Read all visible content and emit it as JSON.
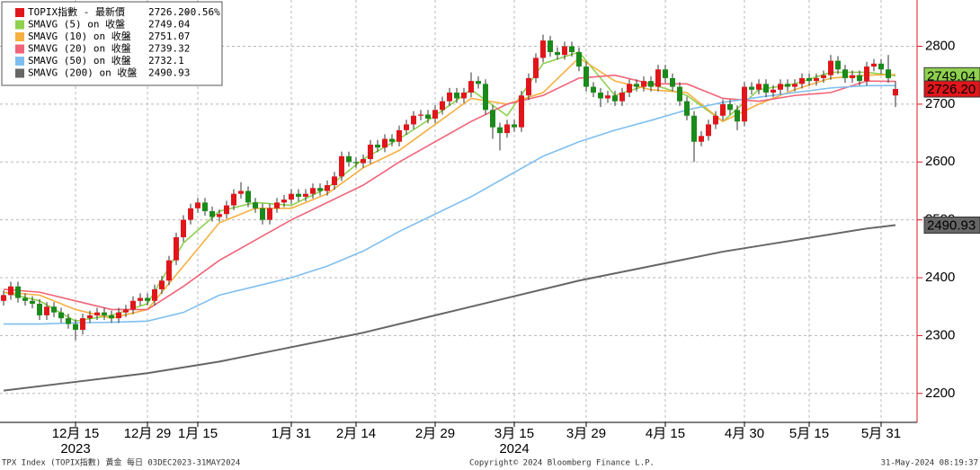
{
  "chart_data": {
    "type": "candlestick",
    "candles": {
      "name": "TOPIX指數 - 最新價",
      "last_label": "2726.20",
      "change": "-0.56%",
      "up_color": "#e0161b",
      "down_color": "#1a8a1a",
      "open": [
        2360,
        2370,
        2385,
        2365,
        2360,
        2355,
        2335,
        2350,
        2340,
        2330,
        2320,
        2310,
        2330,
        2335,
        2340,
        2335,
        2330,
        2340,
        2345,
        2360,
        2365,
        2360,
        2380,
        2395,
        2430,
        2470,
        2500,
        2520,
        2530,
        2515,
        2505,
        2510,
        2525,
        2545,
        2550,
        2530,
        2520,
        2500,
        2520,
        2530,
        2535,
        2545,
        2540,
        2545,
        2555,
        2550,
        2560,
        2575,
        2610,
        2600,
        2598,
        2605,
        2630,
        2625,
        2640,
        2635,
        2655,
        2665,
        2680,
        2682,
        2675,
        2690,
        2705,
        2720,
        2710,
        2720,
        2740,
        2735,
        2690,
        2660,
        2650,
        2665,
        2660,
        2715,
        2745,
        2780,
        2810,
        2790,
        2785,
        2800,
        2790,
        2765,
        2730,
        2720,
        2710,
        2715,
        2705,
        2720,
        2735,
        2730,
        2740,
        2730,
        2760,
        2745,
        2730,
        2705,
        2680,
        2635,
        2645,
        2665,
        2680,
        2700,
        2690,
        2670,
        2730,
        2725,
        2735,
        2720,
        2725,
        2735,
        2730,
        2735,
        2745,
        2740,
        2745,
        2750,
        2775,
        2760,
        2745,
        2750,
        2740,
        2765,
        2770,
        2760,
        2715
      ],
      "high": [
        2378,
        2393,
        2393,
        2373,
        2368,
        2363,
        2358,
        2358,
        2348,
        2338,
        2328,
        2338,
        2343,
        2348,
        2348,
        2343,
        2348,
        2353,
        2368,
        2373,
        2373,
        2388,
        2403,
        2438,
        2478,
        2508,
        2528,
        2538,
        2538,
        2523,
        2518,
        2533,
        2553,
        2565,
        2558,
        2538,
        2528,
        2528,
        2538,
        2543,
        2553,
        2553,
        2553,
        2563,
        2563,
        2568,
        2583,
        2618,
        2618,
        2608,
        2613,
        2638,
        2638,
        2648,
        2648,
        2663,
        2673,
        2688,
        2690,
        2690,
        2698,
        2713,
        2728,
        2728,
        2728,
        2755,
        2748,
        2743,
        2698,
        2668,
        2673,
        2673,
        2723,
        2753,
        2788,
        2820,
        2818,
        2798,
        2808,
        2808,
        2798,
        2773,
        2738,
        2728,
        2723,
        2723,
        2728,
        2743,
        2743,
        2748,
        2748,
        2768,
        2768,
        2753,
        2738,
        2713,
        2688,
        2653,
        2673,
        2688,
        2708,
        2708,
        2698,
        2738,
        2738,
        2743,
        2743,
        2733,
        2743,
        2743,
        2743,
        2753,
        2753,
        2753,
        2758,
        2785,
        2783,
        2768,
        2758,
        2758,
        2773,
        2778,
        2778,
        2785,
        2740
      ],
      "low": [
        2352,
        2362,
        2357,
        2352,
        2347,
        2327,
        2327,
        2332,
        2322,
        2312,
        2292,
        2302,
        2322,
        2327,
        2327,
        2322,
        2322,
        2332,
        2337,
        2352,
        2352,
        2352,
        2372,
        2387,
        2422,
        2462,
        2492,
        2512,
        2507,
        2497,
        2497,
        2502,
        2517,
        2537,
        2522,
        2512,
        2492,
        2492,
        2512,
        2522,
        2527,
        2532,
        2532,
        2537,
        2542,
        2542,
        2552,
        2567,
        2592,
        2590,
        2590,
        2597,
        2617,
        2617,
        2627,
        2627,
        2647,
        2657,
        2672,
        2667,
        2667,
        2682,
        2697,
        2702,
        2702,
        2712,
        2727,
        2682,
        2640,
        2620,
        2642,
        2652,
        2652,
        2707,
        2737,
        2772,
        2782,
        2777,
        2777,
        2782,
        2757,
        2722,
        2712,
        2695,
        2702,
        2697,
        2697,
        2712,
        2722,
        2722,
        2722,
        2722,
        2737,
        2722,
        2697,
        2672,
        2600,
        2627,
        2637,
        2657,
        2672,
        2682,
        2655,
        2662,
        2717,
        2717,
        2712,
        2712,
        2717,
        2722,
        2722,
        2727,
        2732,
        2732,
        2737,
        2742,
        2752,
        2737,
        2737,
        2732,
        2732,
        2757,
        2752,
        2737,
        2695
      ],
      "close": [
        2370,
        2385,
        2365,
        2360,
        2355,
        2335,
        2350,
        2340,
        2330,
        2320,
        2310,
        2330,
        2335,
        2340,
        2335,
        2330,
        2340,
        2345,
        2360,
        2365,
        2360,
        2380,
        2395,
        2430,
        2470,
        2500,
        2520,
        2530,
        2515,
        2505,
        2510,
        2525,
        2545,
        2550,
        2530,
        2520,
        2500,
        2520,
        2530,
        2535,
        2545,
        2540,
        2545,
        2555,
        2550,
        2560,
        2575,
        2610,
        2600,
        2598,
        2605,
        2630,
        2625,
        2640,
        2635,
        2655,
        2665,
        2680,
        2682,
        2675,
        2690,
        2705,
        2720,
        2710,
        2720,
        2740,
        2735,
        2690,
        2660,
        2650,
        2665,
        2660,
        2715,
        2745,
        2780,
        2810,
        2790,
        2785,
        2800,
        2790,
        2765,
        2730,
        2720,
        2710,
        2715,
        2705,
        2720,
        2735,
        2730,
        2740,
        2730,
        2760,
        2745,
        2730,
        2705,
        2680,
        2635,
        2645,
        2665,
        2680,
        2700,
        2690,
        2670,
        2730,
        2725,
        2735,
        2720,
        2725,
        2735,
        2730,
        2735,
        2745,
        2740,
        2745,
        2750,
        2775,
        2760,
        2745,
        2750,
        2740,
        2765,
        2770,
        2760,
        2745,
        2726.2
      ]
    },
    "series": [
      {
        "name": "SMAVG (5)  on 收盤",
        "color": "#8fd14f",
        "x": [
          0,
          5,
          10,
          15,
          20,
          25,
          30,
          35,
          40,
          45,
          50,
          55,
          60,
          65,
          70,
          75,
          80,
          85,
          90,
          95,
          100,
          105,
          110,
          115,
          120,
          124
        ],
        "values": [
          2375,
          2360,
          2325,
          2335,
          2355,
          2460,
          2515,
          2530,
          2525,
          2555,
          2605,
          2640,
          2680,
          2725,
          2680,
          2770,
          2790,
          2715,
          2735,
          2715,
          2670,
          2725,
          2735,
          2755,
          2755,
          2749.04
        ]
      },
      {
        "name": "SMAVG (10)  on 收盤",
        "color": "#f5b041",
        "x": [
          0,
          5,
          10,
          15,
          20,
          25,
          30,
          35,
          40,
          45,
          50,
          55,
          60,
          65,
          70,
          75,
          80,
          85,
          90,
          95,
          100,
          105,
          110,
          115,
          120,
          124
        ],
        "values": [
          2375,
          2370,
          2345,
          2330,
          2345,
          2420,
          2495,
          2520,
          2520,
          2545,
          2590,
          2620,
          2665,
          2710,
          2700,
          2720,
          2780,
          2740,
          2725,
          2720,
          2670,
          2700,
          2725,
          2745,
          2750,
          2751.07
        ]
      },
      {
        "name": "SMAVG (20)  on 收盤",
        "color": "#f06478",
        "x": [
          0,
          5,
          10,
          15,
          20,
          25,
          30,
          35,
          40,
          45,
          50,
          55,
          60,
          65,
          70,
          75,
          80,
          85,
          90,
          95,
          100,
          105,
          110,
          115,
          120,
          124
        ],
        "values": [
          2380,
          2375,
          2360,
          2345,
          2345,
          2385,
          2430,
          2465,
          2500,
          2530,
          2560,
          2600,
          2635,
          2670,
          2700,
          2715,
          2745,
          2750,
          2735,
          2735,
          2710,
          2705,
          2715,
          2720,
          2740,
          2739.32
        ]
      },
      {
        "name": "SMAVG (50)  on 收盤",
        "color": "#7fbfef",
        "x": [
          0,
          5,
          10,
          15,
          20,
          25,
          30,
          35,
          40,
          45,
          50,
          55,
          60,
          65,
          70,
          75,
          80,
          85,
          90,
          95,
          100,
          105,
          110,
          115,
          120,
          124
        ],
        "values": [
          2320,
          2320,
          2322,
          2323,
          2325,
          2340,
          2370,
          2385,
          2400,
          2420,
          2446,
          2480,
          2510,
          2540,
          2575,
          2610,
          2635,
          2655,
          2672,
          2690,
          2703,
          2712,
          2720,
          2728,
          2732,
          2732.1
        ]
      },
      {
        "name": "SMAVG (200)  on 收盤",
        "color": "#666666",
        "x": [
          0,
          10,
          20,
          30,
          40,
          50,
          60,
          70,
          80,
          90,
          100,
          110,
          120,
          124
        ],
        "values": [
          2205,
          2220,
          2235,
          2255,
          2280,
          2305,
          2335,
          2365,
          2395,
          2420,
          2445,
          2465,
          2485,
          2490.93
        ]
      }
    ],
    "xlim": [
      -0.5,
      127
    ],
    "xticks": [
      {
        "value": 10,
        "label": "12月 15"
      },
      {
        "value": 20,
        "label": "12月 29"
      },
      {
        "value": 27,
        "label": "1月 15"
      },
      {
        "value": 40,
        "label": "1月 31"
      },
      {
        "value": 49,
        "label": "2月 14"
      },
      {
        "value": 60,
        "label": "2月 29"
      },
      {
        "value": 71,
        "label": "3月 15"
      },
      {
        "value": 81,
        "label": "3月 29"
      },
      {
        "value": 92,
        "label": "4月 15"
      },
      {
        "value": 103,
        "label": "4月 30"
      },
      {
        "value": 112,
        "label": "5月 15"
      },
      {
        "value": 122,
        "label": "5月 31"
      }
    ],
    "years": [
      {
        "value": 10,
        "label": "2023"
      },
      {
        "value": 71,
        "label": "2024"
      }
    ],
    "ylim": [
      2150,
      2880
    ],
    "yticks": [
      2200,
      2300,
      2400,
      2500,
      2600,
      2700,
      2800
    ],
    "grid": true,
    "footer_left": "TPX Index (TOPIX指數) 黃金  每日 03DEC2023-31MAY2024",
    "footer_center": "Copyright© 2024 Bloomberg Finance L.P.",
    "footer_right": "31-May-2024 08:19:37"
  }
}
